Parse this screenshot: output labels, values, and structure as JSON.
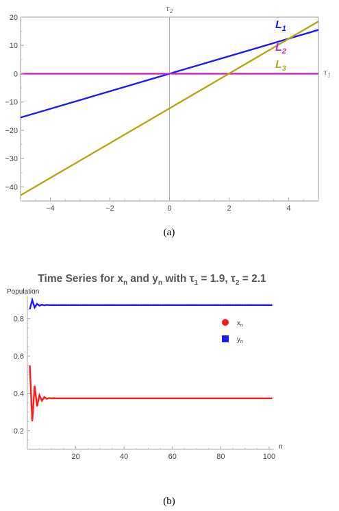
{
  "chart_data": [
    {
      "type": "line",
      "caption": "(a)",
      "xlabel": "τ1",
      "ylabel": "τ2",
      "xlim": [
        -5,
        5
      ],
      "ylim": [
        -45,
        20
      ],
      "x_ticks": [
        -4,
        -2,
        0,
        2,
        4
      ],
      "y_ticks": [
        20,
        10,
        0,
        -10,
        -20,
        -30,
        -40
      ],
      "x_tick_labels": [
        "−4",
        "−2",
        "0",
        "2",
        "4"
      ],
      "y_tick_labels": [
        "20",
        "10",
        "0",
        "−10",
        "−20",
        "−30",
        "−40"
      ],
      "series": [
        {
          "name": "L",
          "sub": "1",
          "color": "#1a1aff",
          "x": [
            -5,
            5
          ],
          "y": [
            -15.5,
            15.5
          ]
        },
        {
          "name": "L",
          "sub": "2",
          "color": "#cc22cc",
          "x": [
            -5,
            5
          ],
          "y": [
            0,
            0
          ]
        },
        {
          "name": "L",
          "sub": "3",
          "color": "#b5a614",
          "x": [
            -5,
            5
          ],
          "y": [
            -43,
            18.5
          ]
        }
      ]
    },
    {
      "type": "line",
      "caption": "(b)",
      "title_main": "Time Series for x",
      "title_parts": [
        "n",
        " and y",
        "n",
        " with τ",
        "1",
        " = 1.9, τ",
        "2",
        " = 2.1"
      ],
      "xlabel": "n",
      "ylabel": "Population",
      "xlim": [
        0,
        102
      ],
      "ylim": [
        0.1,
        0.92
      ],
      "x_ticks": [
        20,
        40,
        60,
        80,
        100
      ],
      "y_ticks": [
        0.2,
        0.4,
        0.6,
        0.8
      ],
      "x_tick_labels": [
        "20",
        "40",
        "60",
        "80",
        "100"
      ],
      "y_tick_labels": [
        "0.2",
        "0.4",
        "0.6",
        "0.8"
      ],
      "legend": [
        {
          "label": "x",
          "sub": "n",
          "color": "#ff1a1a",
          "marker": "circle"
        },
        {
          "label": "y",
          "sub": "n",
          "color": "#1a1aff",
          "marker": "square"
        }
      ],
      "series": [
        {
          "name": "xn",
          "color": "#ff1a1a",
          "values": [
            0.55,
            0.25,
            0.44,
            0.33,
            0.39,
            0.36,
            0.38,
            0.37,
            0.375,
            0.372,
            0.374,
            0.373
          ],
          "steady": 0.373,
          "n_max": 101
        },
        {
          "name": "yn",
          "color": "#1a1aff",
          "values": [
            0.85,
            0.9,
            0.86,
            0.88,
            0.87,
            0.875,
            0.872,
            0.874,
            0.873
          ],
          "steady": 0.873,
          "n_max": 101
        }
      ]
    }
  ]
}
